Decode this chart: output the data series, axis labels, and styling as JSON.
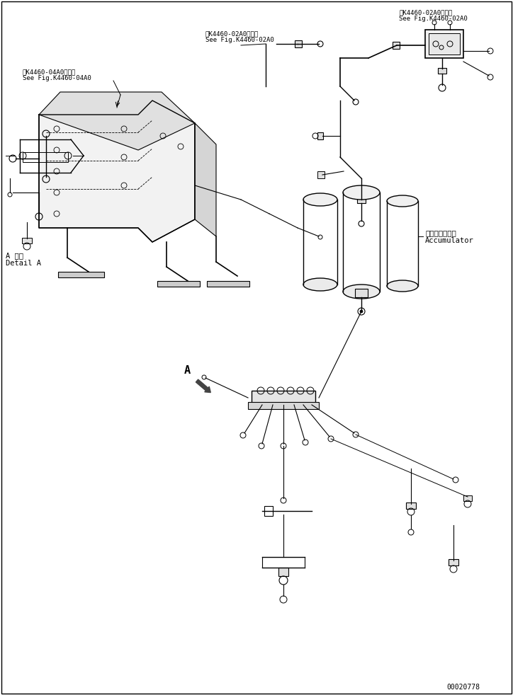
{
  "bg_color": "#ffffff",
  "line_color": "#000000",
  "fig_width": 7.24,
  "fig_height": 9.82,
  "dpi": 100,
  "part_number": "00020778",
  "top_right_label1": "第K4460-02A0図参照",
  "top_right_label2": "See Fig.K4460-02A0",
  "top_center_label1": "第K4460-02A0図参照",
  "top_center_label2": "See Fig.K4460-02A0",
  "top_left_label1": "第K4460-04A0図参照",
  "top_left_label2": "See Fig.K4460-04A0",
  "accumulator_label1": "アキュムレータ",
  "accumulator_label2": "Accumulator",
  "detail_a_label1": "A 詳細",
  "detail_a_label2": "Detail A"
}
